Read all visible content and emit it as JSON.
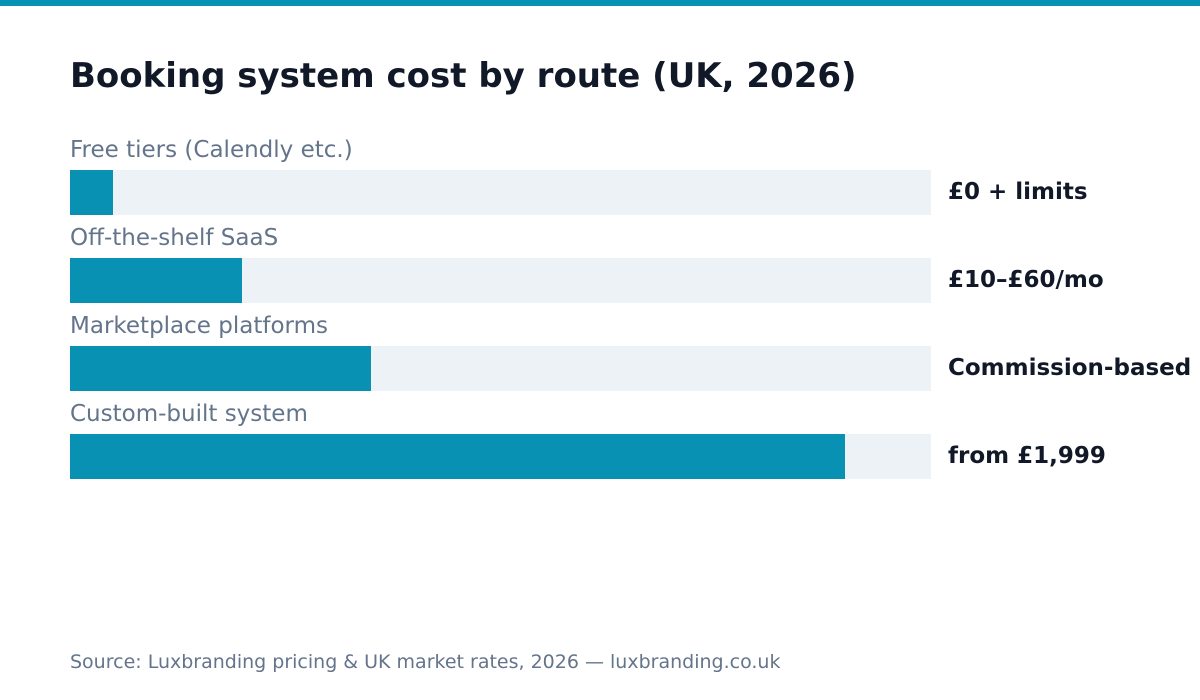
{
  "colors": {
    "accent": "#0891b2",
    "track": "#edf2f7"
  },
  "chart_data": {
    "type": "bar",
    "orientation": "horizontal",
    "title": "Booking system cost by route (UK, 2026)",
    "categories": [
      "Free tiers (Calendly etc.)",
      "Off-the-shelf SaaS",
      "Marketplace platforms",
      "Custom-built system"
    ],
    "values": [
      0.05,
      0.2,
      0.35,
      0.9
    ],
    "value_labels": [
      "£0 + limits",
      "£10–£60/mo",
      "Commission-based",
      "from £1,999"
    ],
    "xlim": [
      0,
      1
    ],
    "grid": false,
    "legend": "none"
  },
  "source": "Source: Luxbranding pricing & UK market rates, 2026 — luxbranding.co.uk"
}
